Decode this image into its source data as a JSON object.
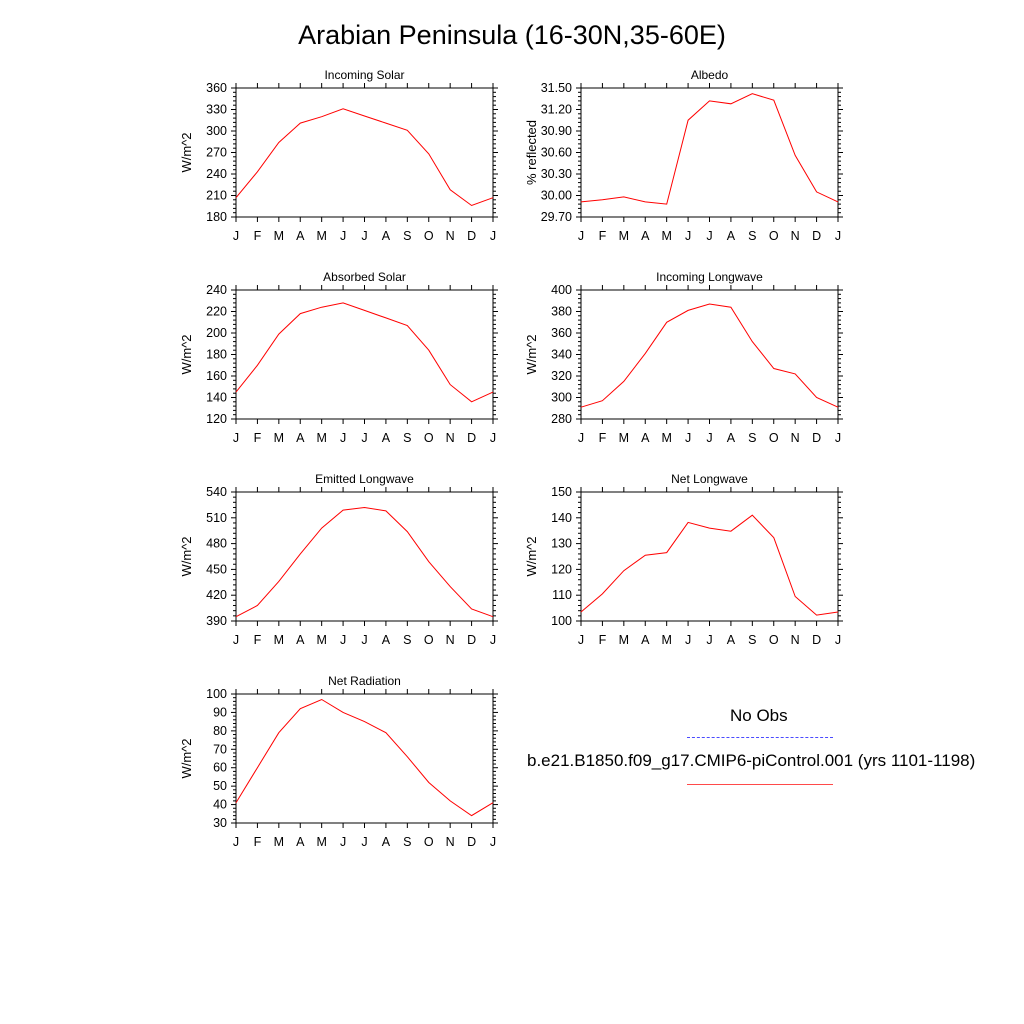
{
  "title": "Arabian Peninsula (16-30N,35-60E)",
  "months": [
    "J",
    "F",
    "M",
    "A",
    "M",
    "J",
    "J",
    "A",
    "S",
    "O",
    "N",
    "D",
    "J"
  ],
  "colors": {
    "model": "#ff0000",
    "obs": "#0000ff",
    "axis": "#000000"
  },
  "legend": {
    "obs_label": "No Obs",
    "model_label": "b.e21.B1850.f09_g17.CMIP6-piControl.001 (yrs 1101-1198)"
  },
  "chart_data": [
    {
      "type": "line",
      "title": "Incoming Solar",
      "ylabel": "W/m^2",
      "ylim": [
        180,
        360
      ],
      "yticks": [
        "180",
        "210",
        "240",
        "270",
        "300",
        "330",
        "360"
      ],
      "series": [
        {
          "name": "b.e21.B1850.f09_g17.CMIP6-piControl.001",
          "values": [
            207,
            243,
            284,
            311,
            320,
            331,
            321,
            311,
            301,
            268,
            218,
            196,
            207
          ]
        }
      ]
    },
    {
      "type": "line",
      "title": "Albedo",
      "ylabel": "% reflected",
      "ylim": [
        29.7,
        31.5
      ],
      "yticks": [
        "29.70",
        "30.00",
        "30.30",
        "30.60",
        "30.90",
        "31.20",
        "31.50"
      ],
      "series": [
        {
          "name": "b.e21.B1850.f09_g17.CMIP6-piControl.001",
          "values": [
            29.91,
            29.94,
            29.98,
            29.91,
            29.88,
            31.05,
            31.32,
            31.28,
            31.42,
            31.33,
            30.56,
            30.05,
            29.91
          ]
        }
      ]
    },
    {
      "type": "line",
      "title": "Absorbed Solar",
      "ylabel": "W/m^2",
      "ylim": [
        120,
        240
      ],
      "yticks": [
        "120",
        "140",
        "160",
        "180",
        "200",
        "220",
        "240"
      ],
      "series": [
        {
          "name": "b.e21.B1850.f09_g17.CMIP6-piControl.001",
          "values": [
            145,
            170,
            199,
            218,
            224,
            228,
            221,
            214,
            207,
            184,
            152,
            136,
            145
          ]
        }
      ]
    },
    {
      "type": "line",
      "title": "Incoming Longwave",
      "ylabel": "W/m^2",
      "ylim": [
        280,
        400
      ],
      "yticks": [
        "280",
        "300",
        "320",
        "340",
        "360",
        "380",
        "400"
      ],
      "series": [
        {
          "name": "b.e21.B1850.f09_g17.CMIP6-piControl.001",
          "values": [
            291,
            297,
            315,
            341,
            370,
            381,
            387,
            384,
            352,
            327,
            322,
            300,
            291
          ]
        }
      ]
    },
    {
      "type": "line",
      "title": "Emitted Longwave",
      "ylabel": "W/m^2",
      "ylim": [
        390,
        540
      ],
      "yticks": [
        "390",
        "420",
        "450",
        "480",
        "510",
        "540"
      ],
      "series": [
        {
          "name": "b.e21.B1850.f09_g17.CMIP6-piControl.001",
          "values": [
            395,
            408,
            436,
            468,
            498,
            519,
            522,
            518,
            494,
            459,
            430,
            404,
            395
          ]
        }
      ]
    },
    {
      "type": "line",
      "title": "Net Longwave",
      "ylabel": "W/m^2",
      "ylim": [
        100,
        150
      ],
      "yticks": [
        "100",
        "110",
        "120",
        "130",
        "140",
        "150"
      ],
      "series": [
        {
          "name": "b.e21.B1850.f09_g17.CMIP6-piControl.001",
          "values": [
            103.5,
            110.5,
            119.5,
            125.5,
            126.5,
            138.2,
            136,
            134.8,
            141,
            132.3,
            109.5,
            102.3,
            103.5
          ]
        }
      ]
    },
    {
      "type": "line",
      "title": "Net Radiation",
      "ylabel": "W/m^2",
      "ylim": [
        30,
        100
      ],
      "yticks": [
        "30",
        "40",
        "50",
        "60",
        "70",
        "80",
        "90",
        "100"
      ],
      "series": [
        {
          "name": "b.e21.B1850.f09_g17.CMIP6-piControl.001",
          "values": [
            41,
            60,
            79,
            92,
            97,
            90,
            85,
            79,
            66,
            52,
            42,
            34,
            41
          ]
        }
      ]
    }
  ]
}
